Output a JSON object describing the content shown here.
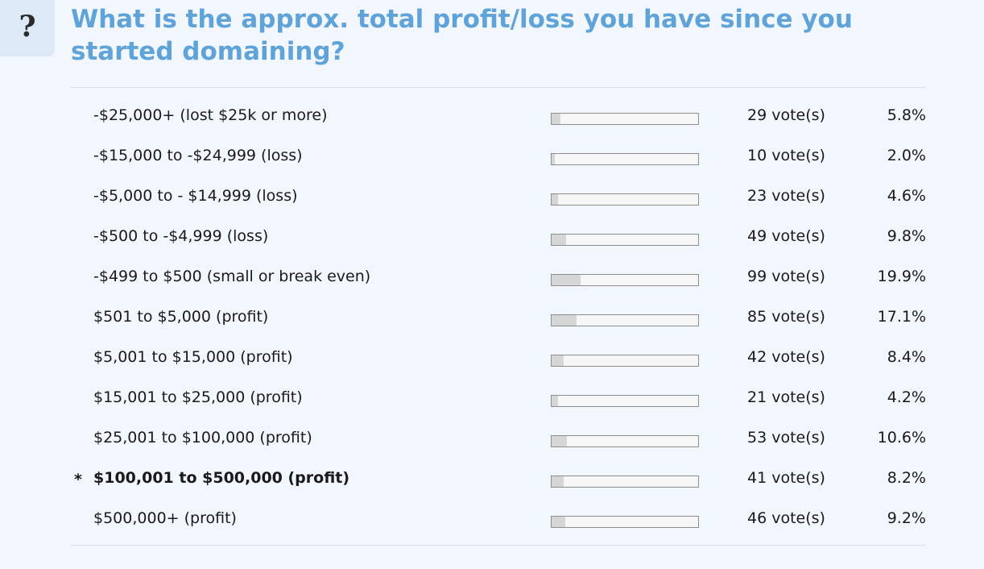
{
  "poll": {
    "icon": "question-mark-icon",
    "icon_glyph": "?",
    "question": "What is the approx. total profit/loss you have since you started domaining?",
    "options": [
      {
        "label": "-$25,000+ (lost $25k or more)",
        "votes": "29 vote(s)",
        "percent": "5.8%",
        "percent_value": 5.8,
        "selected": false,
        "marker": ""
      },
      {
        "label": "-$15,000 to -$24,999 (loss)",
        "votes": "10 vote(s)",
        "percent": "2.0%",
        "percent_value": 2.0,
        "selected": false,
        "marker": ""
      },
      {
        "label": "-$5,000 to - $14,999 (loss)",
        "votes": "23 vote(s)",
        "percent": "4.6%",
        "percent_value": 4.6,
        "selected": false,
        "marker": ""
      },
      {
        "label": "-$500 to -$4,999 (loss)",
        "votes": "49 vote(s)",
        "percent": "9.8%",
        "percent_value": 9.8,
        "selected": false,
        "marker": ""
      },
      {
        "label": "-$499 to $500 (small or break even)",
        "votes": "99 vote(s)",
        "percent": "19.9%",
        "percent_value": 19.9,
        "selected": false,
        "marker": ""
      },
      {
        "label": "$501 to $5,000 (profit)",
        "votes": "85 vote(s)",
        "percent": "17.1%",
        "percent_value": 17.1,
        "selected": false,
        "marker": ""
      },
      {
        "label": "$5,001 to $15,000 (profit)",
        "votes": "42 vote(s)",
        "percent": "8.4%",
        "percent_value": 8.4,
        "selected": false,
        "marker": ""
      },
      {
        "label": "$15,001 to $25,000 (profit)",
        "votes": "21 vote(s)",
        "percent": "4.2%",
        "percent_value": 4.2,
        "selected": false,
        "marker": ""
      },
      {
        "label": "$25,001 to $100,000 (profit)",
        "votes": "53 vote(s)",
        "percent": "10.6%",
        "percent_value": 10.6,
        "selected": false,
        "marker": ""
      },
      {
        "label": "$100,001 to $500,000 (profit)",
        "votes": "41 vote(s)",
        "percent": "8.2%",
        "percent_value": 8.2,
        "selected": true,
        "marker": "*"
      },
      {
        "label": "$500,000+ (profit)",
        "votes": "46 vote(s)",
        "percent": "9.2%",
        "percent_value": 9.2,
        "selected": false,
        "marker": ""
      }
    ]
  },
  "colors": {
    "question_text": "#5fa3d8",
    "background": "#f2f7fd",
    "bar_fill": "#d6d6d6",
    "bar_border": "#8e8e8e"
  }
}
